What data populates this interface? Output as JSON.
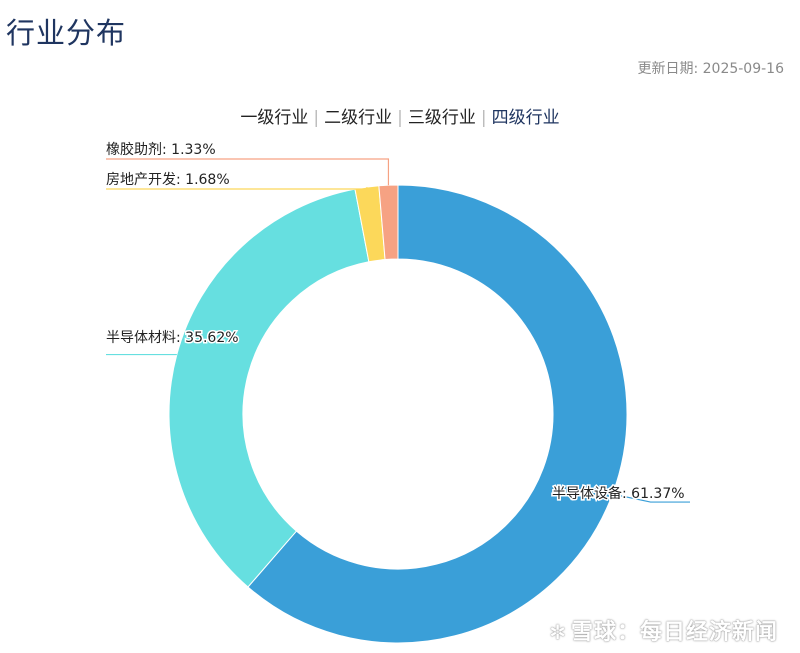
{
  "page": {
    "title": "行业分布",
    "update_label": "更新日期:",
    "update_date": "2025-09-16"
  },
  "tabs": [
    {
      "label": "一级行业",
      "active": false
    },
    {
      "label": "二级行业",
      "active": false
    },
    {
      "label": "三级行业",
      "active": false
    },
    {
      "label": "四级行业",
      "active": true
    }
  ],
  "watermark": {
    "logo": "✲",
    "text": "雪球：每日经济新闻"
  },
  "chart_data": {
    "type": "pie",
    "variant": "donut",
    "title": "",
    "slices": [
      {
        "label": "半导体设备",
        "value": 61.37,
        "display": "半导体设备: 61.37%",
        "color": "#3a9fd8"
      },
      {
        "label": "半导体材料",
        "value": 35.62,
        "display": "半导体材料: 35.62%",
        "color": "#66dfe0"
      },
      {
        "label": "房地产开发",
        "value": 1.68,
        "display": "房地产开发: 1.68%",
        "color": "#fcd85a"
      },
      {
        "label": "橡胶助剂",
        "value": 1.33,
        "display": "橡胶助剂: 1.33%",
        "color": "#f6a283"
      }
    ]
  }
}
